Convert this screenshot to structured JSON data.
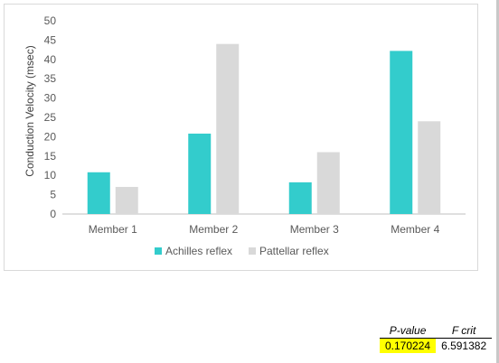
{
  "chart_data": {
    "type": "bar",
    "categories": [
      "Member 1",
      "Member 2",
      "Member 3",
      "Member 4"
    ],
    "series": [
      {
        "name": "Achilles reflex",
        "values": [
          10.8,
          20.8,
          8.2,
          42.2
        ],
        "color": "#33cccc"
      },
      {
        "name": "Pattellar reflex",
        "values": [
          7.0,
          44.0,
          16.0,
          24.0
        ],
        "color": "#d9d9d9"
      }
    ],
    "ylabel": "Conduction Velocity (msec)",
    "xlabel": "",
    "ylim": [
      0,
      50
    ],
    "yticks": [
      0,
      5,
      10,
      15,
      20,
      25,
      30,
      35,
      40,
      45,
      50
    ],
    "grid": false,
    "legend_position": "bottom"
  },
  "stats_table": {
    "headers": [
      "P-value",
      "F crit"
    ],
    "values": [
      "0.170224",
      "6.591382"
    ],
    "highlight_color": "#ffff00"
  }
}
